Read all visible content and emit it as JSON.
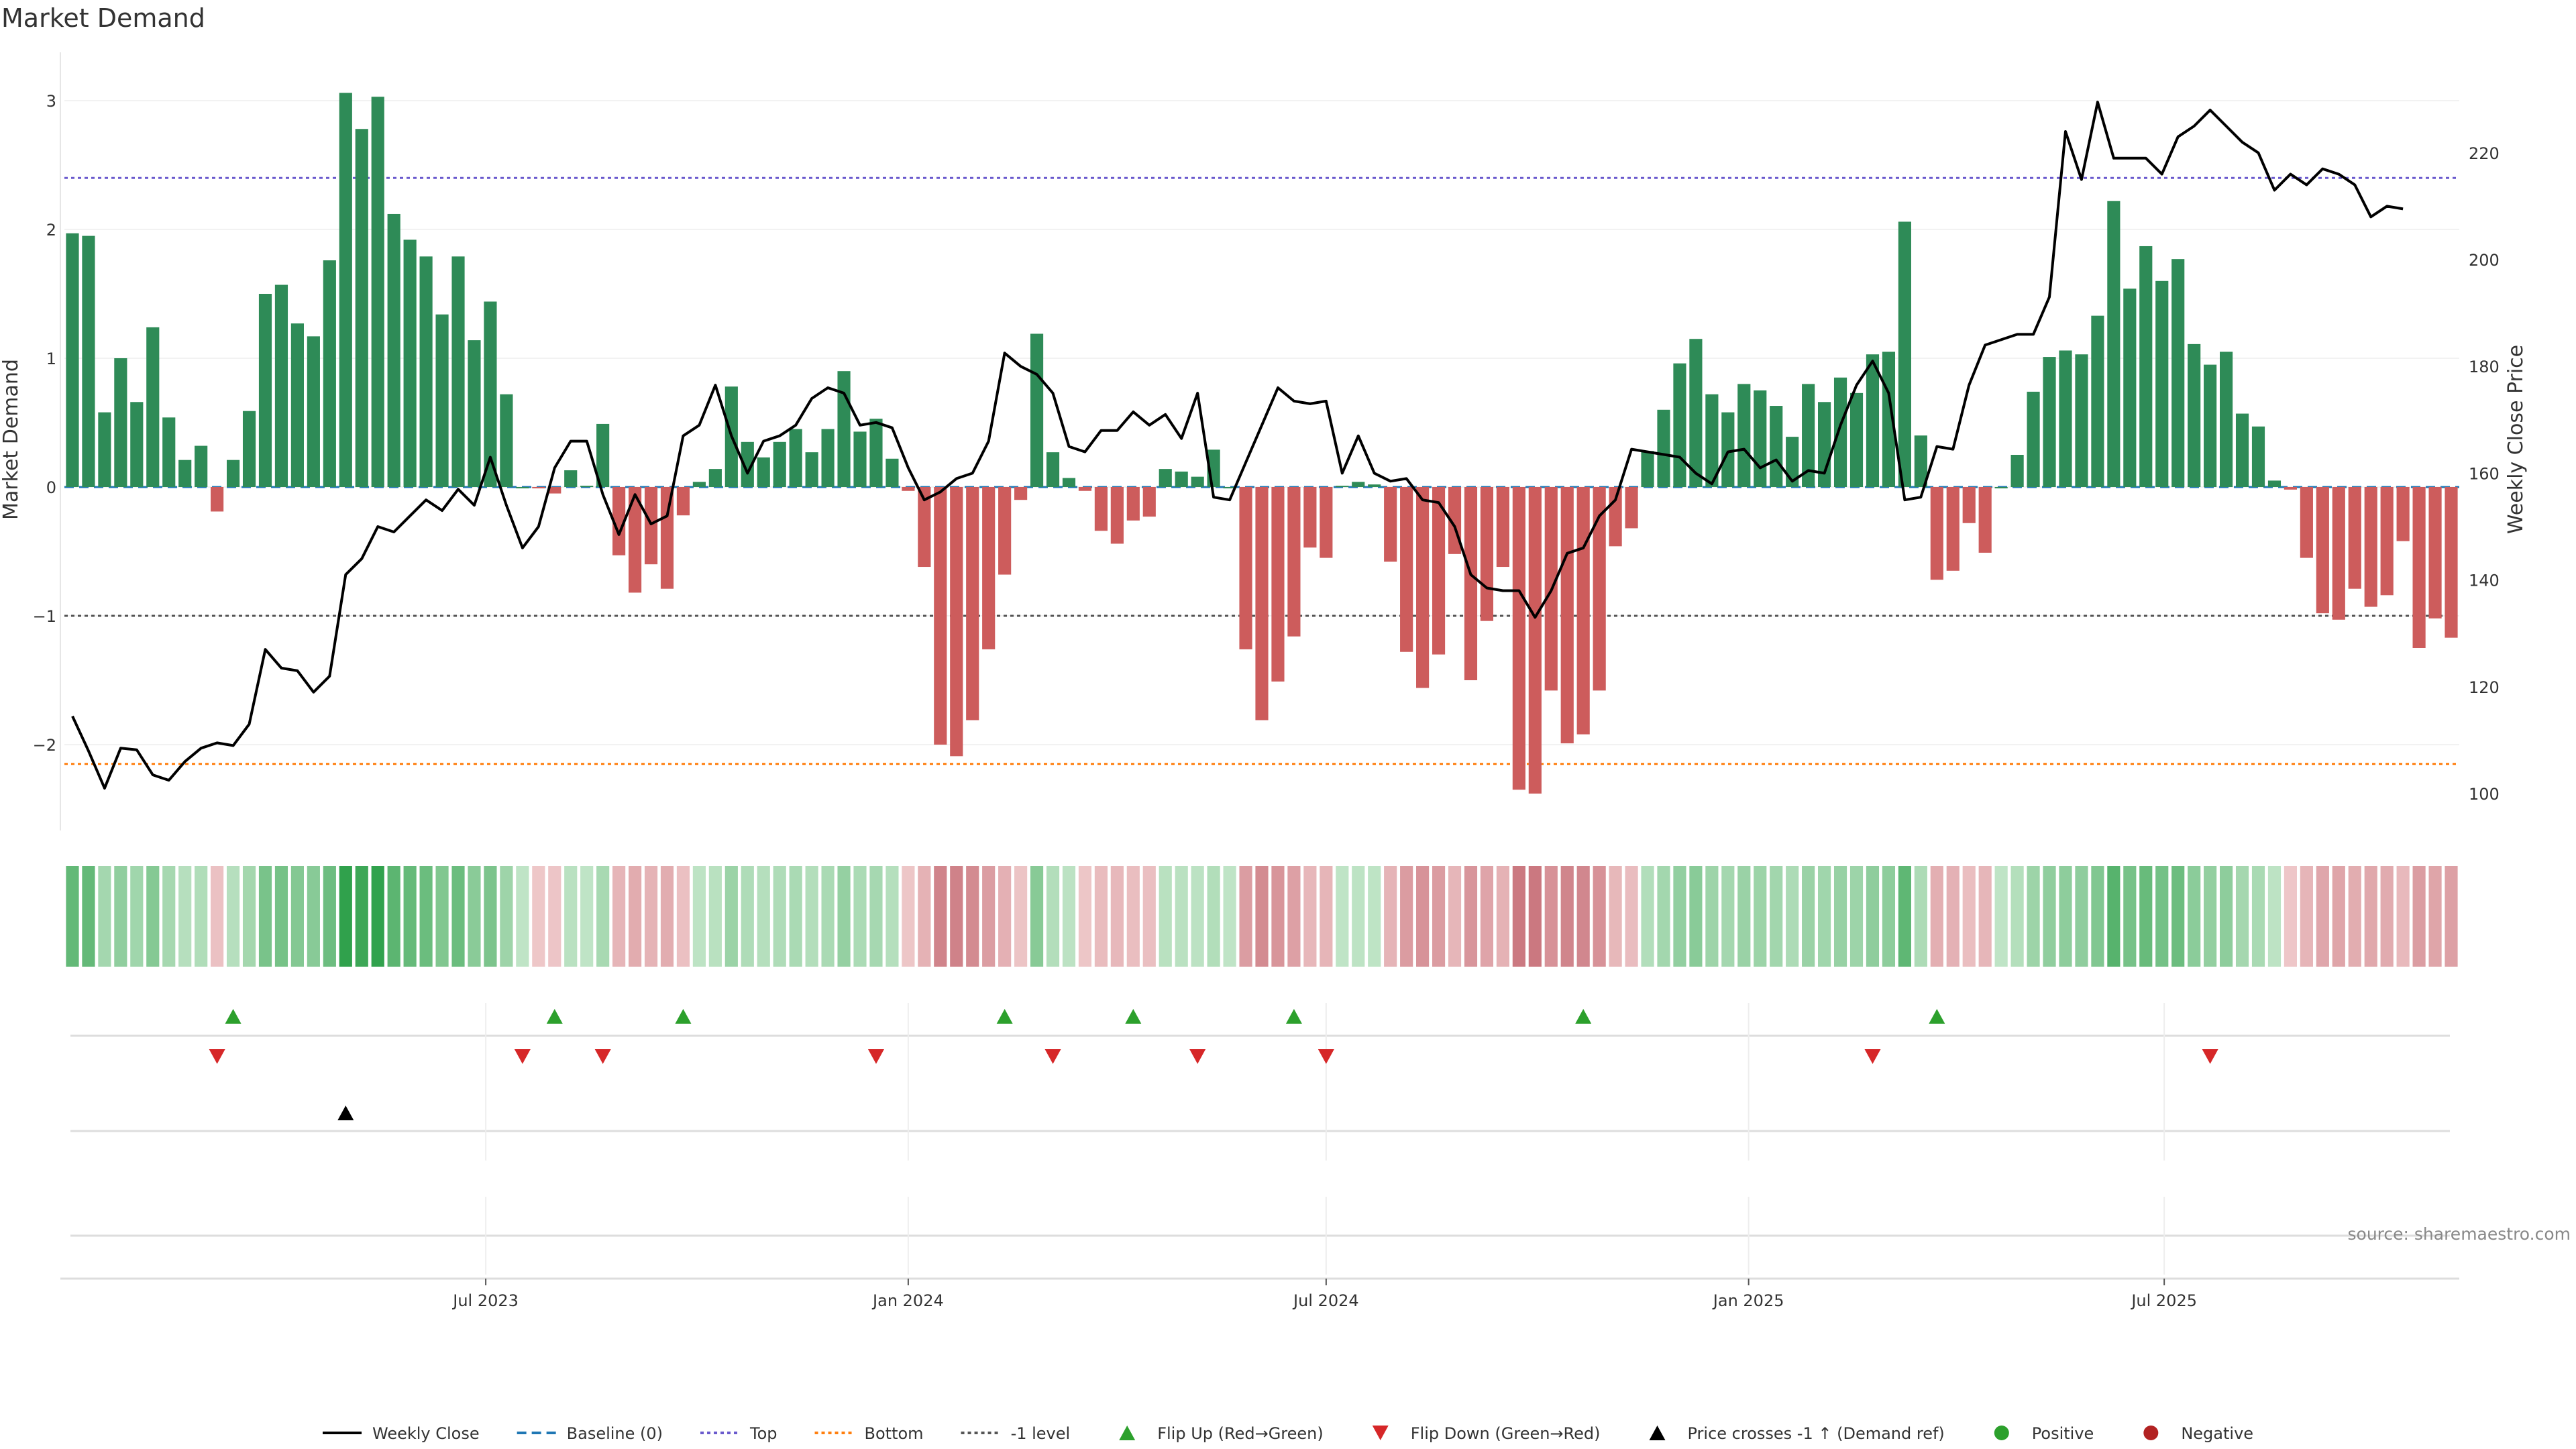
{
  "chart_data": {
    "type": "bar",
    "title": "Market Demand",
    "ylabel": "Market Demand",
    "y2label": "Weekly Close Price",
    "ylim": [
      -2.6,
      3.05
    ],
    "y2lim": [
      96,
      230
    ],
    "yticks": [
      -2,
      -1,
      0,
      1,
      2,
      3
    ],
    "yticklabels": [
      "−2",
      "−1",
      "0",
      "1",
      "2",
      "3"
    ],
    "y2ticks": [
      100,
      120,
      140,
      160,
      180,
      200,
      220
    ],
    "x_start": "2023-01-02",
    "x_step_days": 7,
    "xticks": [
      {
        "date": "2023-07-01",
        "label": "Jul 2023"
      },
      {
        "date": "2024-01-01",
        "label": "Jan 2024"
      },
      {
        "date": "2024-07-01",
        "label": "Jul 2024"
      },
      {
        "date": "2025-01-01",
        "label": "Jan 2025"
      },
      {
        "date": "2025-07-01",
        "label": "Jul 2025"
      }
    ],
    "reference_lines": [
      {
        "name": "Baseline (0)",
        "value": 0,
        "color": "#1f77b4",
        "style": "dashed"
      },
      {
        "name": "Top",
        "value": 2.4,
        "color": "#6a5acd",
        "style": "dotted"
      },
      {
        "name": "Bottom",
        "value": -2.15,
        "color": "#ff7f0e",
        "style": "dotted"
      },
      {
        "name": "-1 level",
        "value": -1,
        "color": "#555555",
        "style": "dotted"
      }
    ],
    "series": [
      {
        "name": "Market Demand",
        "kind": "bar",
        "positive_color": "#2e8b57",
        "negative_color": "#cd5c5c",
        "values": [
          1.97,
          1.95,
          0.58,
          1.0,
          0.66,
          1.24,
          0.54,
          0.21,
          0.32,
          -0.19,
          0.21,
          0.59,
          1.5,
          1.57,
          1.27,
          1.17,
          1.76,
          3.06,
          2.78,
          3.03,
          2.12,
          1.92,
          1.79,
          1.34,
          1.79,
          1.14,
          1.44,
          0.72,
          0.0,
          -0.01,
          -0.05,
          0.13,
          0.01,
          0.49,
          -0.53,
          -0.82,
          -0.6,
          -0.79,
          -0.22,
          0.04,
          0.14,
          0.78,
          0.35,
          0.23,
          0.35,
          0.45,
          0.27,
          0.45,
          0.9,
          0.43,
          0.53,
          0.22,
          -0.03,
          -0.62,
          -2.0,
          -2.09,
          -1.81,
          -1.26,
          -0.68,
          -0.1,
          1.19,
          0.27,
          0.07,
          -0.03,
          -0.34,
          -0.44,
          -0.26,
          -0.23,
          0.14,
          0.12,
          0.08,
          0.29,
          0.0,
          -1.26,
          -1.81,
          -1.51,
          -1.16,
          -0.47,
          -0.55,
          0.01,
          0.04,
          0.02,
          -0.58,
          -1.28,
          -1.56,
          -1.3,
          -0.52,
          -1.5,
          -1.04,
          -0.62,
          -2.35,
          -2.38,
          -1.58,
          -1.99,
          -1.92,
          -1.58,
          -0.46,
          -0.32,
          0.28,
          0.6,
          0.96,
          1.15,
          0.72,
          0.58,
          0.8,
          0.75,
          0.63,
          0.39,
          0.8,
          0.66,
          0.85,
          0.73,
          1.03,
          1.05,
          2.06,
          0.4,
          -0.72,
          -0.65,
          -0.28,
          -0.51,
          0.0,
          0.25,
          0.74,
          1.01,
          1.06,
          1.03,
          1.33,
          2.22,
          1.54,
          1.87,
          1.6,
          1.77,
          1.11,
          0.95,
          1.05,
          0.57,
          0.47,
          0.05,
          -0.02,
          -0.55,
          -0.98,
          -1.03,
          -0.79,
          -0.93,
          -0.84,
          -0.42,
          -1.25,
          -1.02,
          -1.17
        ]
      },
      {
        "name": "Weekly Close",
        "kind": "line",
        "axis": "right",
        "color": "#000000",
        "values": [
          114.5,
          108.0,
          101.0,
          108.5,
          108.2,
          103.5,
          102.5,
          106.0,
          108.5,
          109.5,
          109.0,
          113.0,
          127.0,
          123.5,
          123.0,
          119.0,
          122.0,
          141.0,
          144.0,
          150.0,
          149.0,
          152.0,
          155.0,
          153.0,
          157.0,
          154.0,
          163.0,
          154.0,
          146.0,
          150.0,
          161.0,
          166.0,
          166.0,
          156.0,
          148.5,
          156.0,
          150.5,
          152.0,
          167.0,
          169.0,
          176.5,
          167.0,
          160.0,
          166.0,
          167.0,
          169.0,
          174.0,
          176.0,
          175.0,
          169.0,
          169.5,
          168.5,
          161.0,
          155.0,
          156.5,
          159.0,
          160.0,
          166.0,
          182.5,
          180.0,
          178.5,
          175.0,
          165.0,
          164.0,
          168.0,
          168.0,
          171.5,
          169.0,
          171.0,
          166.5,
          175.0,
          155.5,
          155.0,
          162.0,
          169.0,
          176.0,
          173.5,
          173.0,
          173.5,
          160.0,
          167.0,
          160.0,
          158.5,
          159.0,
          155.0,
          154.5,
          150.0,
          141.0,
          138.5,
          138.0,
          138.0,
          133.0,
          138.0,
          145.0,
          146.0,
          152.0,
          155.0,
          164.5,
          164.0,
          163.5,
          163.0,
          160.0,
          158.0,
          164.0,
          164.5,
          161.0,
          162.5,
          158.5,
          160.5,
          160.0,
          169.0,
          176.5,
          181.0,
          175.0,
          155.0,
          155.5,
          165.0,
          164.5,
          176.5,
          184.0,
          185.0,
          186.0,
          186.0,
          193.0,
          224.0,
          215.0,
          229.5,
          219.0,
          219.0,
          219.0,
          216.0,
          223.0,
          225.0,
          228.0,
          225.0,
          222.0,
          220.0,
          213.0,
          216.0,
          214.0,
          217.0,
          216.0,
          214.0,
          208.0,
          210.0,
          209.5
        ]
      }
    ],
    "heatmap_strip": {
      "note": "colour intensity follows the Market Demand value per week (green positive, red negative)"
    },
    "events": {
      "flip_up_weeks": [
        10,
        30,
        38,
        58,
        66,
        76,
        94,
        116
      ],
      "flip_down_weeks": [
        9,
        28,
        33,
        50,
        61,
        70,
        78,
        112,
        133
      ],
      "price_cross_weeks": [
        17
      ]
    },
    "legend": {
      "placement": "bottom-center",
      "entries": [
        {
          "label": "Weekly Close",
          "marker": "line-solid",
          "color": "#000000"
        },
        {
          "label": "Baseline (0)",
          "marker": "line-dashed",
          "color": "#1f77b4"
        },
        {
          "label": "Top",
          "marker": "line-dotted",
          "color": "#6a5acd"
        },
        {
          "label": "Bottom",
          "marker": "line-dotted",
          "color": "#ff7f0e"
        },
        {
          "label": "-1 level",
          "marker": "line-dotted",
          "color": "#555555"
        },
        {
          "label": "Flip Up (Red→Green)",
          "marker": "triangle-up",
          "color": "#2ca02c"
        },
        {
          "label": "Flip Down (Green→Red)",
          "marker": "triangle-down",
          "color": "#d62728"
        },
        {
          "label": "Price crosses -1 ↑ (Demand ref)",
          "marker": "triangle-up",
          "color": "#000000"
        },
        {
          "label": "Positive",
          "marker": "circle",
          "color": "#2ca02c"
        },
        {
          "label": "Negative",
          "marker": "circle",
          "color": "#b22222"
        }
      ]
    },
    "source": "source: sharemaestro.com"
  }
}
